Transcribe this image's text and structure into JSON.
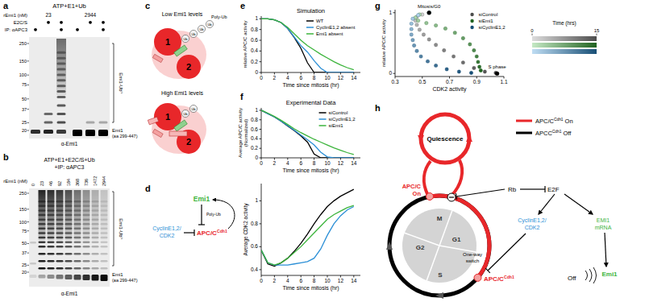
{
  "panel_labels": [
    "a",
    "b",
    "c",
    "d",
    "e",
    "f",
    "g",
    "h"
  ],
  "gel_a": {
    "title": "ATP+E1+Ub",
    "rows": [
      {
        "label": "rEmi1 (nM)",
        "groups": [
          23,
          2944
        ]
      },
      {
        "label": "E2C/S",
        "marks": [
          false,
          true,
          true,
          false,
          true,
          true
        ]
      },
      {
        "label": "IP: αAPC3",
        "marks": [
          true,
          false,
          true,
          true,
          false,
          true
        ]
      }
    ],
    "markers": [
      250,
      150,
      100,
      75,
      50,
      37,
      25,
      20
    ],
    "ub_label": "Emi1-Ub",
    "ub_superscript": "n",
    "band_label": "Emi1",
    "band_sublabel": "(aa 299-447)",
    "antibody": "α-Emi1"
  },
  "gel_b": {
    "title": [
      "ATP+E1+E2C/S+Ub",
      "+IP: αAPC3"
    ],
    "row_label": "rEmi1 (nM)",
    "concentrations": [
      0,
      23,
      46,
      92,
      184,
      368,
      736,
      1472,
      2944
    ],
    "markers": [
      250,
      150,
      100,
      75,
      50,
      37,
      25,
      20
    ],
    "ub_label": "Emi1-Ub",
    "ub_superscript": "n",
    "band_label": "Emi1",
    "band_sublabel": "(aa 299-447)",
    "antibody": "α-Emi1"
  },
  "diagram_c": {
    "low_title": "Low Emi1 levels",
    "high_title": "High Emi1 levels",
    "subunits": [
      "1",
      "2"
    ],
    "ub": "Ub",
    "poly_ub": "Poly-Ub"
  },
  "diagram_d": {
    "emi1": "Emi1",
    "poly_ub": "Poly-Ub",
    "cyclin": [
      "CyclinE1,2/",
      "CDK2"
    ],
    "apc": "APC/C",
    "apc_superscript": "Cdh1"
  },
  "diagram_h": {
    "quiescence": "Quiescence",
    "apc_on": [
      "APC/C",
      "On"
    ],
    "phases": [
      "M",
      "G1",
      "S",
      "G2"
    ],
    "switch": [
      "One-way",
      "switch"
    ],
    "rb": "Rb",
    "e2f": "E2F",
    "cyclin": [
      "CyclinE1,2/",
      "CDK2"
    ],
    "emi1_mrna": [
      "EMI1",
      "mRNA"
    ],
    "emi1": "Emi1",
    "apc": "APC/C",
    "apc_superscript": "Cdh1",
    "off": "Off",
    "legend": [
      {
        "label": "APC/C",
        "superscript": "Cdh1",
        "suffix": "On",
        "color": "#e8272a"
      },
      {
        "label": "APCC",
        "superscript": "Cdh1",
        "suffix": "Off",
        "color": "#000000"
      }
    ]
  },
  "chart_data": [
    {
      "type": "line",
      "title": "Simulation",
      "xlabel": "Time since mitosis (hr)",
      "ylabel": "relative APC/C activity",
      "x": [
        0,
        1,
        2,
        3,
        4,
        5,
        6,
        7,
        8,
        9,
        10,
        11,
        12,
        13,
        14
      ],
      "xlim": [
        0,
        15
      ],
      "xticks": [
        0,
        2,
        4,
        6,
        8,
        10,
        12,
        14
      ],
      "ylim": [
        0,
        1.05
      ],
      "yticks": [
        0,
        0.2,
        0.4,
        0.6,
        0.8,
        1
      ],
      "legend": "upper right",
      "series": [
        {
          "name": "WT",
          "color": "#000000",
          "values": [
            1,
            1,
            0.98,
            0.93,
            0.82,
            0.65,
            0.45,
            0.18,
            0,
            0,
            0,
            0,
            0,
            0,
            0
          ]
        },
        {
          "name": "CyclinE1,2 absent",
          "color": "#2b8fd6",
          "values": [
            1,
            1,
            0.98,
            0.93,
            0.82,
            0.66,
            0.5,
            0.38,
            0.22,
            0.08,
            0,
            0,
            0,
            0,
            0
          ]
        },
        {
          "name": "Emi1 absent",
          "color": "#3cb43c",
          "values": [
            1,
            1,
            0.98,
            0.93,
            0.84,
            0.72,
            0.6,
            0.5,
            0.42,
            0.34,
            0.27,
            0.2,
            0.14,
            0.09,
            0.05
          ]
        }
      ]
    },
    {
      "type": "line",
      "title": "Experimental Data",
      "xlabel": "Time since mitosis (hr)",
      "ylabel": "Average APC/C activity",
      "ylabel_sub": "(Normalized)",
      "x": [
        0,
        1,
        2,
        3,
        4,
        5,
        6,
        7,
        8,
        9,
        10,
        11,
        12,
        13,
        14
      ],
      "xlim": [
        0,
        15
      ],
      "xticks": [
        0,
        2,
        4,
        6,
        8,
        10,
        12,
        14
      ],
      "ylim": [
        0,
        1.05
      ],
      "yticks": [
        0,
        0.2,
        0.4,
        0.6,
        0.8,
        1
      ],
      "legend": "upper right",
      "series": [
        {
          "name": "siControl",
          "color": "#000000",
          "values": [
            1,
            0.93,
            0.86,
            0.77,
            0.67,
            0.57,
            0.46,
            0.33,
            0.08,
            0,
            0,
            0,
            0,
            0,
            0
          ]
        },
        {
          "name": "siCyclinE1,2",
          "color": "#2b8fd6",
          "values": [
            1,
            0.93,
            0.86,
            0.77,
            0.68,
            0.58,
            0.48,
            0.38,
            0.27,
            0.12,
            0.02,
            0,
            0,
            0,
            0
          ]
        },
        {
          "name": "siEmi1",
          "color": "#3cb43c",
          "values": [
            1,
            0.94,
            0.87,
            0.79,
            0.7,
            0.61,
            0.53,
            0.46,
            0.39,
            0.33,
            0.27,
            0.21,
            0.16,
            0.11,
            0.07
          ]
        }
      ]
    },
    {
      "type": "line",
      "xlabel": "Time since mitosis (hr)",
      "ylabel": "Average CDK2 activity",
      "x": [
        0,
        1,
        2,
        3,
        4,
        5,
        6,
        7,
        8,
        9,
        10,
        11,
        12,
        13,
        14
      ],
      "xlim": [
        0,
        15
      ],
      "xticks": [
        0,
        2,
        4,
        6,
        8,
        10,
        12,
        14
      ],
      "ylim": [
        0.35,
        1.15
      ],
      "yticks": [
        0.4,
        0.6,
        0.8,
        1
      ],
      "series": [
        {
          "color": "#000000",
          "values": [
            0.57,
            0.45,
            0.43,
            0.46,
            0.5,
            0.56,
            0.63,
            0.71,
            0.8,
            0.88,
            0.95,
            1.0,
            1.04,
            1.07,
            1.1
          ]
        },
        {
          "color": "#2b8fd6",
          "values": [
            0.57,
            0.46,
            0.44,
            0.44,
            0.44,
            0.45,
            0.46,
            0.47,
            0.5,
            0.58,
            0.7,
            0.8,
            0.87,
            0.92,
            0.95
          ]
        },
        {
          "color": "#3cb43c",
          "values": [
            0.57,
            0.46,
            0.44,
            0.46,
            0.5,
            0.55,
            0.6,
            0.66,
            0.72,
            0.78,
            0.84,
            0.88,
            0.91,
            0.94,
            0.96
          ]
        }
      ]
    },
    {
      "type": "scatter",
      "marker": "circle",
      "xlabel": "CDK2 activity",
      "ylabel": "relative APC/C activity",
      "xlim": [
        0.3,
        1.1
      ],
      "xticks": [
        0.3,
        0.5,
        0.7,
        0.9,
        1.1
      ],
      "ylim": [
        -0.05,
        1.05
      ],
      "yticks": [
        0,
        1
      ],
      "legend": "upper right",
      "series": [
        {
          "name": "siControl",
          "color": "#8c8c8c",
          "x": [
            0.55,
            0.5,
            0.46,
            0.45,
            0.46,
            0.48,
            0.51,
            0.55,
            0.6,
            0.66,
            0.73,
            0.8,
            0.88,
            0.96,
            1.04
          ],
          "values": [
            1,
            0.97,
            0.93,
            0.87,
            0.8,
            0.72,
            0.64,
            0.56,
            0.47,
            0.38,
            0.28,
            0.18,
            0.09,
            0.03,
            0.01
          ]
        },
        {
          "name": "siEmi1",
          "color": "#3cb43c",
          "x": [
            0.55,
            0.48,
            0.45,
            0.47,
            0.53,
            0.6,
            0.67,
            0.74,
            0.8,
            0.85,
            0.88,
            0.9,
            0.91,
            0.92,
            0.93
          ],
          "values": [
            1,
            0.97,
            0.92,
            0.87,
            0.83,
            0.79,
            0.74,
            0.67,
            0.58,
            0.48,
            0.38,
            0.28,
            0.19,
            0.11,
            0.05
          ]
        },
        {
          "name": "siCyclinE1,2",
          "color": "#2b8fd6",
          "x": [
            0.55,
            0.47,
            0.43,
            0.42,
            0.42,
            0.42,
            0.43,
            0.44,
            0.46,
            0.49,
            0.54,
            0.6,
            0.68,
            0.77,
            0.86
          ],
          "values": [
            1,
            0.96,
            0.9,
            0.82,
            0.73,
            0.64,
            0.55,
            0.46,
            0.37,
            0.28,
            0.2,
            0.13,
            0.07,
            0.03,
            0.01
          ]
        }
      ],
      "annotations": [
        {
          "text": "Mitosis/G0",
          "x": 0.55,
          "y": 1
        },
        {
          "text": "S phase",
          "x": 1.05,
          "y": 0
        }
      ],
      "colorbar": {
        "label": "Time (hrs)",
        "range": [
          0,
          15
        ],
        "ticks": [
          0,
          15
        ]
      }
    }
  ]
}
